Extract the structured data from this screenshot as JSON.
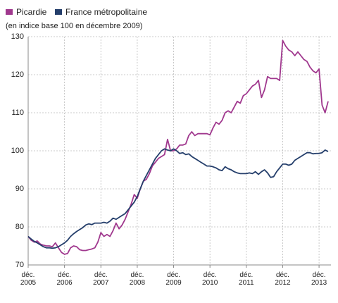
{
  "chart_data": {
    "type": "line",
    "subtitle": "(en indice base 100 en décembre 2009)",
    "categories": [
      "déc. 2005",
      null,
      null,
      null,
      null,
      null,
      null,
      null,
      null,
      null,
      null,
      null,
      "déc. 2006",
      null,
      null,
      null,
      null,
      null,
      null,
      null,
      null,
      null,
      null,
      null,
      "déc. 2007",
      null,
      null,
      null,
      null,
      null,
      null,
      null,
      null,
      null,
      null,
      null,
      "déc. 2008",
      null,
      null,
      null,
      null,
      null,
      null,
      null,
      null,
      null,
      null,
      null,
      "déc. 2009",
      null,
      null,
      null,
      null,
      null,
      null,
      null,
      null,
      null,
      null,
      null,
      "déc. 2010",
      null,
      null,
      null,
      null,
      null,
      null,
      null,
      null,
      null,
      null,
      null,
      "déc. 2011",
      null,
      null,
      null,
      null,
      null,
      null,
      null,
      null,
      null,
      null,
      null,
      "déc. 2012",
      null,
      null,
      null,
      null,
      null,
      null,
      null,
      null,
      null,
      null,
      null,
      "déc. 2013",
      null,
      null,
      null
    ],
    "series": [
      {
        "name": "Picardie",
        "color": "#a0388e",
        "values": [
          77.5,
          76.5,
          76,
          76.3,
          75.5,
          75.2,
          75,
          75,
          74.8,
          75.8,
          74.5,
          73.3,
          72.8,
          73,
          74.5,
          75,
          74.8,
          74,
          73.8,
          73.8,
          74,
          74.2,
          74.5,
          76,
          78.5,
          77.5,
          78,
          77.5,
          79,
          81,
          79.5,
          80.5,
          82,
          84,
          86,
          88.5,
          87.5,
          90,
          92,
          92.5,
          94,
          96,
          97,
          98,
          98.5,
          99,
          103,
          100,
          100,
          100.5,
          101.5,
          101.5,
          101.8,
          104,
          105,
          104,
          104.5,
          104.5,
          104.5,
          104.5,
          104.2,
          106,
          107.5,
          107,
          108,
          110,
          110.5,
          110,
          111.5,
          113,
          112.5,
          114.5,
          115,
          116,
          117,
          117.5,
          118.5,
          114,
          116,
          119.5,
          119,
          119,
          119,
          118.5,
          129,
          127.5,
          126.5,
          126,
          125,
          126,
          125,
          124,
          123.5,
          122,
          121,
          120.5,
          121.5,
          112,
          110,
          113
        ]
      },
      {
        "name": "France métropolitaine",
        "color": "#243e6b",
        "values": [
          77.5,
          76.8,
          76.2,
          75.8,
          75.3,
          74.8,
          74.5,
          74.5,
          74.4,
          74.5,
          74.8,
          75.3,
          75.8,
          76.5,
          77.5,
          78.2,
          78.8,
          79.3,
          79.8,
          80.5,
          80.8,
          80.6,
          81,
          81,
          81,
          81.2,
          81,
          81.5,
          82.3,
          82,
          82.5,
          83,
          83.5,
          84.5,
          85.5,
          86.5,
          88,
          90,
          92,
          93.5,
          95,
          96.5,
          98,
          99,
          100,
          100.5,
          100.2,
          100,
          100.5,
          100,
          99.3,
          99.5,
          99,
          99.2,
          98.5,
          98,
          97.5,
          97,
          96.5,
          96,
          96,
          95.8,
          95.5,
          95,
          94.8,
          95.8,
          95.3,
          95,
          94.5,
          94.2,
          94,
          94,
          94,
          94.2,
          94,
          94.5,
          93.8,
          94.5,
          95,
          94.2,
          93,
          93.2,
          94.5,
          95.5,
          96.5,
          96.5,
          96.2,
          96.5,
          97.5,
          98,
          98.5,
          99,
          99.5,
          99.5,
          99.2,
          99.3,
          99.3,
          99.5,
          100.2,
          99.8
        ]
      }
    ],
    "ylim": [
      70,
      130
    ],
    "yticks": [
      70,
      80,
      90,
      100,
      110,
      120,
      130
    ],
    "grid": true
  }
}
